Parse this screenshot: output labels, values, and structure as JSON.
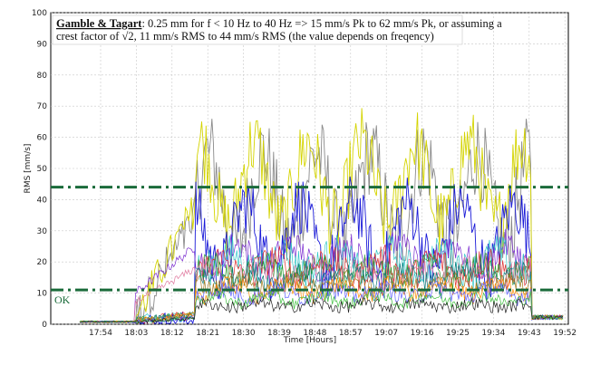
{
  "chart_data": {
    "type": "line",
    "xlabel": "Time [Hours]",
    "ylabel": "RMS [mm/s]",
    "ylim": [
      0,
      100
    ],
    "y_ticks": [
      0,
      10,
      20,
      30,
      40,
      50,
      60,
      70,
      80,
      90,
      100
    ],
    "x_tick_labels": [
      "17:54",
      "18:03",
      "18:12",
      "18:21",
      "18:30",
      "18:39",
      "18:48",
      "18:57",
      "19:07",
      "19:16",
      "19:25",
      "19:34",
      "19:43",
      "19:52"
    ],
    "grid": true,
    "annotation": {
      "bold": "Gamble & Tagart",
      "line1": ": 0.25 mm for f < 10 Hz to 40 Hz => 15 mm/s Pk to 62 mm/s Pk, or assuming a",
      "line2": "crest factor of √2,  11 mm/s RMS to 44 mm/s RMS (the value depends on freqency)"
    },
    "thresholds": [
      {
        "value": 44,
        "color": "#1a6b3a",
        "label": ""
      },
      {
        "value": 11,
        "color": "#1a6b3a",
        "label": "OK"
      }
    ],
    "series_colors": [
      "#8a8a8a",
      "#d4d400",
      "#1a1ad8",
      "#7a2bd0",
      "#30c8c8",
      "#e03030",
      "#2a9a2a",
      "#e07aa0",
      "#0a7a7a",
      "#a07a20",
      "#ff8c00",
      "#6060ff",
      "#40c040",
      "#202020"
    ],
    "series_profiles": [
      {
        "base": 40,
        "amp": 25,
        "noise": 14,
        "pre": 2
      },
      {
        "base": 45,
        "amp": 22,
        "noise": 12,
        "pre": 2
      },
      {
        "base": 28,
        "amp": 18,
        "noise": 10,
        "pre": 1.5
      },
      {
        "base": 22,
        "amp": 6,
        "noise": 5,
        "pre": 25
      },
      {
        "base": 20,
        "amp": 5,
        "noise": 6,
        "pre": 3
      },
      {
        "base": 18,
        "amp": 5,
        "noise": 5,
        "pre": 3
      },
      {
        "base": 17,
        "amp": 4,
        "noise": 4,
        "pre": 3
      },
      {
        "base": 16,
        "amp": 4,
        "noise": 4,
        "pre": 18
      },
      {
        "base": 15,
        "amp": 3,
        "noise": 4,
        "pre": 3
      },
      {
        "base": 13,
        "amp": 3,
        "noise": 3,
        "pre": 3
      },
      {
        "base": 11,
        "amp": 3,
        "noise": 3,
        "pre": 3
      },
      {
        "base": 10,
        "amp": 2,
        "noise": 3,
        "pre": 2
      },
      {
        "base": 8,
        "amp": 2,
        "noise": 2,
        "pre": 2
      },
      {
        "base": 6,
        "amp": 1,
        "noise": 2,
        "pre": 2
      }
    ]
  }
}
